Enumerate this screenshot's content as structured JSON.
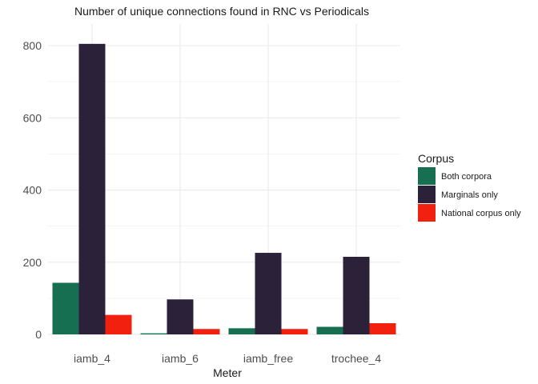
{
  "chart_data": {
    "type": "bar",
    "title": "Number of unique connections found in RNC vs Periodicals",
    "xlabel": "Meter",
    "ylabel": "",
    "categories": [
      "iamb_4",
      "iamb_6",
      "iamb_free",
      "trochee_4"
    ],
    "series": [
      {
        "name": "Both corpora",
        "color": "#176F51",
        "values": [
          143,
          3,
          17,
          21
        ]
      },
      {
        "name": "Marginals only",
        "color": "#2B2139",
        "values": [
          805,
          97,
          226,
          215
        ]
      },
      {
        "name": "National corpus only",
        "color": "#F2200E",
        "values": [
          54,
          15,
          15,
          31
        ]
      }
    ],
    "ylim": [
      0,
      860
    ],
    "yticks": [
      0,
      200,
      400,
      600,
      800
    ],
    "grid": true,
    "legend_title": "Corpus",
    "legend_position": "right"
  }
}
